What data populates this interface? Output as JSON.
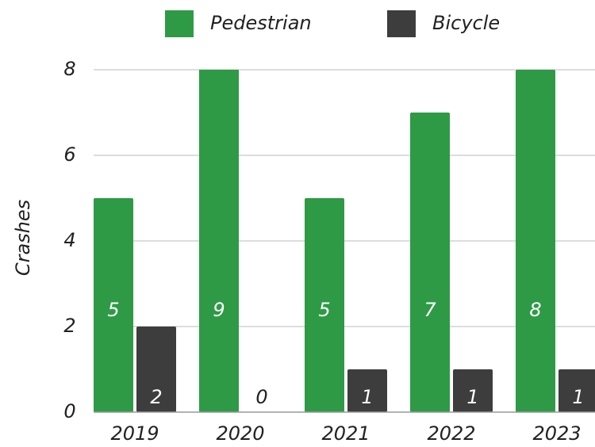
{
  "chart_data": {
    "type": "bar",
    "y_label": "Crashes",
    "categories": [
      "2019",
      "2020",
      "2021",
      "2022",
      "2023"
    ],
    "series": [
      {
        "name": "Pedestrian",
        "color": "#2e9a46",
        "values": [
          5,
          9,
          5,
          7,
          8
        ]
      },
      {
        "name": "Bicycle",
        "color": "#3d3d3d",
        "values": [
          2,
          0,
          1,
          1,
          1
        ]
      }
    ],
    "ylim": [
      0,
      8
    ],
    "yticks": [
      0,
      2,
      4,
      6,
      8
    ],
    "grid": true,
    "legend": "top"
  }
}
